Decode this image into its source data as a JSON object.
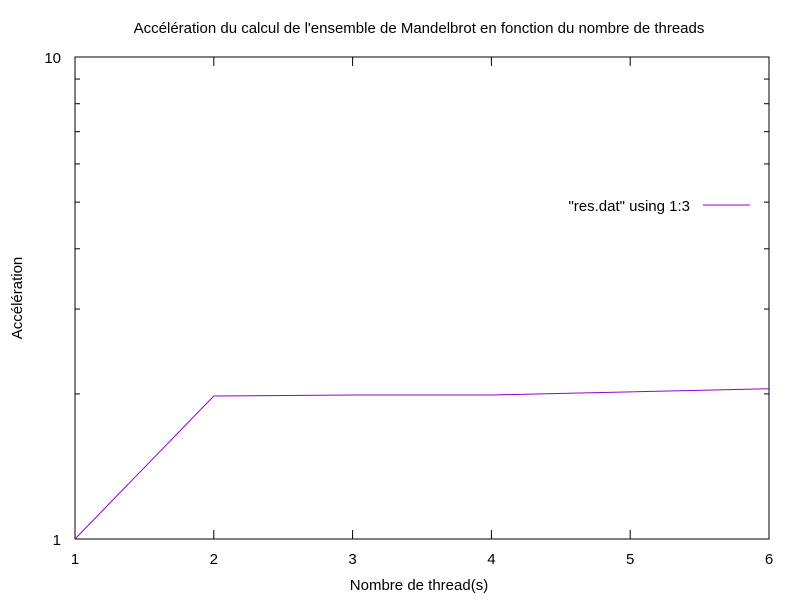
{
  "chart_data": {
    "type": "line",
    "title": "Accélération du calcul de l'ensemble de Mandelbrot en fonction du nombre de threads",
    "xlabel": "Nombre de thread(s)",
    "ylabel": "Accélération",
    "xlim": [
      1,
      6
    ],
    "ylim": [
      1,
      10
    ],
    "yscale": "log",
    "x_ticks": [
      "1",
      "2",
      "3",
      "4",
      "5",
      "6"
    ],
    "y_ticks": [
      "1",
      "10"
    ],
    "grid": false,
    "legend_position": "top-right",
    "series": [
      {
        "name": "\"res.dat\" using 1:3",
        "color": "#9400d3",
        "x": [
          1,
          2,
          3,
          4,
          5,
          6
        ],
        "y": [
          1.0,
          1.98,
          1.99,
          1.99,
          2.02,
          2.05
        ]
      }
    ]
  }
}
